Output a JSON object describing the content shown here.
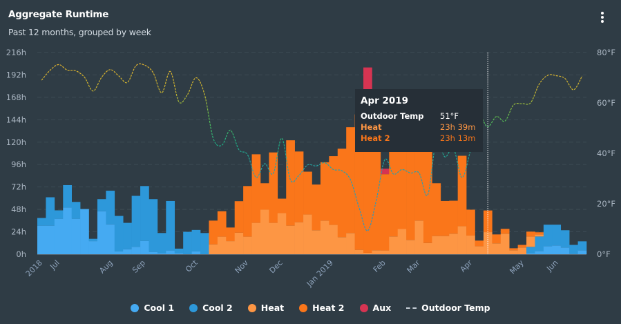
{
  "header": {
    "title": "Aggregate Runtime",
    "subtitle": "Past 12 months, grouped by week",
    "menu_icon": "kebab-vertical-icon"
  },
  "colors": {
    "background": "#2f3c45",
    "cool1": "#45aaf2",
    "cool2": "#2d98da",
    "heat": "#fd9644",
    "heat2": "#fa761a",
    "aux": "#d63452",
    "temp_high": "#e0b23a",
    "temp_low": "#2a9fb0"
  },
  "chart_data": {
    "type": "bar",
    "stacked": true,
    "title": "Aggregate Runtime",
    "subtitle": "Past 12 months, grouped by week",
    "y_left": {
      "ticks": [
        "0h",
        "24h",
        "48h",
        "72h",
        "96h",
        "120h",
        "144h",
        "168h",
        "192h",
        "216h"
      ],
      "range": [
        0,
        216
      ],
      "unit": "h"
    },
    "y_right": {
      "ticks": [
        "0°F",
        "20°F",
        "40°F",
        "60°F",
        "80°F"
      ],
      "range": [
        0,
        80
      ],
      "unit": "°F"
    },
    "x_ticks": [
      {
        "label": "2018",
        "week": 0.3
      },
      {
        "label": "Jul",
        "week": 2.3
      },
      {
        "label": "Aug",
        "week": 8.5
      },
      {
        "label": "Sep",
        "week": 12.3
      },
      {
        "label": "Oct",
        "week": 18.4
      },
      {
        "label": "Nov",
        "week": 24.3
      },
      {
        "label": "Dec",
        "week": 28.3
      },
      {
        "label": "Jan 2019",
        "week": 34.2
      },
      {
        "label": "Feb",
        "week": 40.3
      },
      {
        "label": "Mar",
        "week": 44.3
      },
      {
        "label": "Apr",
        "week": 50.4
      },
      {
        "label": "May",
        "week": 56.4
      },
      {
        "label": "Jun",
        "week": 60.4
      }
    ],
    "grid": true,
    "legend": "bottom",
    "series": [
      {
        "name": "Cool 1",
        "values": [
          30.6,
          30.6,
          38,
          50,
          38,
          48.4,
          14,
          46,
          32,
          3,
          5.4,
          8,
          14.3,
          2.5,
          1.2,
          4,
          1.2,
          0,
          3,
          0,
          0,
          0,
          0,
          0,
          0,
          0,
          0,
          0,
          0,
          0,
          0,
          0,
          0,
          0,
          0,
          0,
          0,
          0,
          0,
          0,
          0,
          0,
          0,
          0,
          0,
          0,
          0,
          0,
          0,
          0,
          0,
          0,
          0,
          0,
          0,
          0,
          0,
          1.2,
          3.5,
          8.6,
          9.4,
          7.2,
          0.5,
          4.2
        ]
      },
      {
        "name": "Cool 2",
        "values": [
          8.2,
          30.4,
          9,
          24,
          18,
          0,
          2.5,
          13,
          36,
          38,
          28.2,
          54.5,
          58.7,
          56.5,
          21.5,
          53,
          4.8,
          24,
          23,
          22.7,
          0,
          0,
          0,
          0,
          0,
          0,
          0,
          0,
          0,
          0,
          0,
          0,
          0,
          0,
          0,
          0,
          0,
          0,
          0,
          0,
          0,
          0,
          0,
          0,
          0,
          0,
          0,
          0,
          0,
          0,
          0,
          0,
          0,
          0,
          0,
          0,
          0,
          6.7,
          15.5,
          23,
          22.2,
          18.5,
          9.5,
          9.6
        ]
      },
      {
        "name": "Heat",
        "values": [
          0,
          0,
          0,
          0,
          0,
          0,
          0,
          0,
          0,
          0,
          0,
          0,
          0,
          0,
          0,
          0,
          0,
          0,
          0,
          0,
          10.6,
          18.8,
          14,
          23,
          18.8,
          33.6,
          47.7,
          33.6,
          44,
          30.6,
          34.3,
          42.5,
          25.7,
          36,
          31.4,
          18.3,
          22.7,
          4.7,
          1.5,
          4.2,
          4,
          19,
          27,
          15.3,
          36,
          12,
          19.5,
          19.5,
          22,
          30,
          20,
          8.6,
          23.65,
          11.6,
          22,
          4.2,
          7.2,
          11.1,
          2.2,
          0,
          0,
          0,
          0,
          0
        ]
      },
      {
        "name": "Heat 2",
        "values": [
          0,
          0,
          0,
          0,
          0,
          0,
          0,
          0,
          0,
          0,
          0,
          0,
          0,
          0,
          0,
          0,
          0,
          0,
          0,
          0,
          25.4,
          27.2,
          14.6,
          33.8,
          54.2,
          73.4,
          28.3,
          75.4,
          15.5,
          91.4,
          75.7,
          45.9,
          48.9,
          62.5,
          73.6,
          94.7,
          113.3,
          145,
          163.5,
          145,
          81.7,
          121,
          133,
          120,
          114,
          113,
          56.5,
          37.5,
          35.3,
          75.4,
          27.7,
          6,
          23.22,
          9.6,
          5.2,
          2.2,
          2.8,
          5.2,
          2.3,
          0,
          0,
          0,
          0,
          0
        ]
      },
      {
        "name": "Aux",
        "values": [
          0,
          0,
          0,
          0,
          0,
          0,
          0,
          0,
          0,
          0,
          0,
          0,
          0,
          0,
          0,
          0,
          0,
          0,
          0,
          0,
          0,
          0,
          0,
          0,
          0,
          0,
          0,
          0,
          0,
          0,
          0,
          0,
          0,
          0,
          0,
          0,
          0,
          0,
          35,
          0,
          5.9,
          0,
          0,
          0,
          0,
          0,
          0,
          0,
          0,
          0,
          0,
          0,
          0,
          0,
          0,
          0,
          0,
          0,
          0,
          0,
          0,
          0,
          0,
          0
        ]
      },
      {
        "name": "Outdoor Temp",
        "type": "line",
        "axis": "right",
        "values": [
          69,
          73,
          75.2,
          73,
          72.7,
          70.2,
          64.7,
          70.2,
          73.2,
          70.7,
          68.1,
          74.8,
          75,
          72,
          64,
          72.5,
          60.4,
          63.3,
          70,
          63.3,
          46,
          43.2,
          49.2,
          41.4,
          39.5,
          30.4,
          35.9,
          32,
          46,
          29.5,
          31.3,
          35.4,
          35,
          36.3,
          33.6,
          33.1,
          29.5,
          18.5,
          9.3,
          21.3,
          37.5,
          31.8,
          33.6,
          32.2,
          32.2,
          23.5,
          45,
          38.6,
          42,
          30.4,
          41.4,
          54,
          50.5,
          54.6,
          52.8,
          59.2,
          59.7,
          60.1,
          67.5,
          71,
          70.8,
          69.7,
          65.2,
          70.7
        ]
      }
    ],
    "hover_week": 52
  },
  "tooltip": {
    "title": "Apr 2019",
    "rows": [
      {
        "label": "Outdoor Temp",
        "value": "51°F",
        "color": "#ffffff"
      },
      {
        "label": "Heat",
        "value": "23h 39m",
        "color": "#fd9644"
      },
      {
        "label": "Heat 2",
        "value": "23h 13m",
        "color": "#fa761a"
      }
    ]
  },
  "legend": [
    {
      "label": "Cool 1",
      "color": "#45aaf2"
    },
    {
      "label": "Cool 2",
      "color": "#2d98da"
    },
    {
      "label": "Heat",
      "color": "#fd9644"
    },
    {
      "label": "Heat 2",
      "color": "#fa761a"
    },
    {
      "label": "Aux",
      "color": "#d63452"
    },
    {
      "label": "Outdoor Temp",
      "color": "#c8d0d8"
    }
  ]
}
